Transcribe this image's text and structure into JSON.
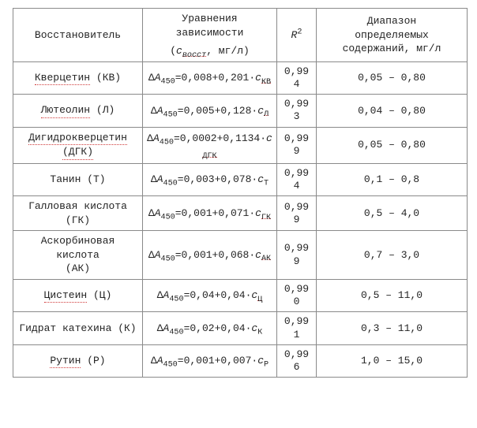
{
  "columns": {
    "c1": "Восстановитель",
    "c2a": "Уравнения зависимости",
    "c2b_open": "(",
    "c2b_var": "с",
    "c2b_sub": "восст",
    "c2b_unit": ", мг/л)",
    "c3_var": "R",
    "c3_sup": "2",
    "c4a": "Диапазон",
    "c4b": "определяемых",
    "c4c": "содержаний, мг/л"
  },
  "rows": [
    {
      "name_a": "Кверцетин",
      "name_a_red": true,
      "name_b": " (КВ)",
      "name_b_red": false,
      "eq_pre": "Δ",
      "eq_A": "A",
      "eq_Asub": "450",
      "eq_mid": "=0,008+0,201·",
      "eq_c": "с",
      "eq_csub": "КВ",
      "eq_csub_red": true,
      "r2": "0,994",
      "range": "0,05 – 0,80"
    },
    {
      "name_a": "Лютеолин",
      "name_a_red": true,
      "name_b": " (Л)",
      "name_b_red": false,
      "eq_pre": "Δ",
      "eq_A": "A",
      "eq_Asub": "450",
      "eq_mid": "=0,005+0,128·",
      "eq_c": "с",
      "eq_csub": "Л",
      "eq_csub_red": true,
      "r2": "0,993",
      "range": "0,04 – 0,80"
    },
    {
      "name_a": "Дигидрокверцетин",
      "name_a_red": true,
      "name_b": "(ДГК)",
      "name_b_red": true,
      "two_line_name": true,
      "eq_pre": "Δ",
      "eq_A": "A",
      "eq_Asub": "450",
      "eq_mid": "=0,0002+0,1134·",
      "eq_c": "с",
      "eq_csub": "ДГК",
      "eq_csub_red": true,
      "r2": "0,999",
      "range": "0,05 – 0,80"
    },
    {
      "name_a": "Танин (Т)",
      "name_a_red": false,
      "name_b": "",
      "name_b_red": false,
      "eq_pre": "Δ",
      "eq_A": "A",
      "eq_Asub": "450",
      "eq_mid": "=0,003+0,078·",
      "eq_c": "с",
      "eq_csub": "Т",
      "eq_csub_red": false,
      "r2": "0,994",
      "range": "0,1 – 0,8"
    },
    {
      "name_a": "Галловая кислота",
      "name_a_red": false,
      "name_b": "(ГК)",
      "name_b_red": false,
      "two_line_name": true,
      "eq_pre": "Δ",
      "eq_A": "A",
      "eq_Asub": "450",
      "eq_mid": "=0,001+0,071·",
      "eq_c": "с",
      "eq_csub": "ГК",
      "eq_csub_red": true,
      "r2": "0,999",
      "range": "0,5 – 4,0"
    },
    {
      "name_a": "Аскорбиновая кислота",
      "name_a_red": false,
      "name_b": "(АК)",
      "name_b_red": false,
      "two_line_name": true,
      "eq_pre": "Δ",
      "eq_A": "A",
      "eq_Asub": "450",
      "eq_mid": "=0,001+0,068·",
      "eq_c": "с",
      "eq_csub": "АК",
      "eq_csub_red": true,
      "r2": "0,999",
      "range": "0,7 – 3,0"
    },
    {
      "name_a": "Цистеин",
      "name_a_red": true,
      "name_b": " (Ц)",
      "name_b_red": false,
      "eq_pre": "Δ",
      "eq_A": "A",
      "eq_Asub": "450",
      "eq_mid": "=0,04+0,04·",
      "eq_c": "с",
      "eq_csub": "Ц",
      "eq_csub_red": true,
      "r2": "0,990",
      "range": "0,5 – 11,0"
    },
    {
      "name_a": "Гидрат катехина",
      "name_a_red": false,
      "name_b": "  (К)",
      "name_b_red": false,
      "eq_pre": "Δ",
      "eq_A": "A",
      "eq_Asub": "450",
      "eq_mid": "=0,02+0,04·",
      "eq_c": "с",
      "eq_csub": "К",
      "eq_csub_red": false,
      "r2": "0,991",
      "range": "0,3 – 11,0"
    },
    {
      "name_a": "Рутин",
      "name_a_red": true,
      "name_b": " (Р)",
      "name_b_red": false,
      "eq_pre": "Δ",
      "eq_A": "A",
      "eq_Asub": "450",
      "eq_mid": "=0,001+0,007·",
      "eq_c": "с",
      "eq_csub": "Р",
      "eq_csub_red": false,
      "r2": "0,996",
      "range": "1,0 – 15,0"
    }
  ]
}
